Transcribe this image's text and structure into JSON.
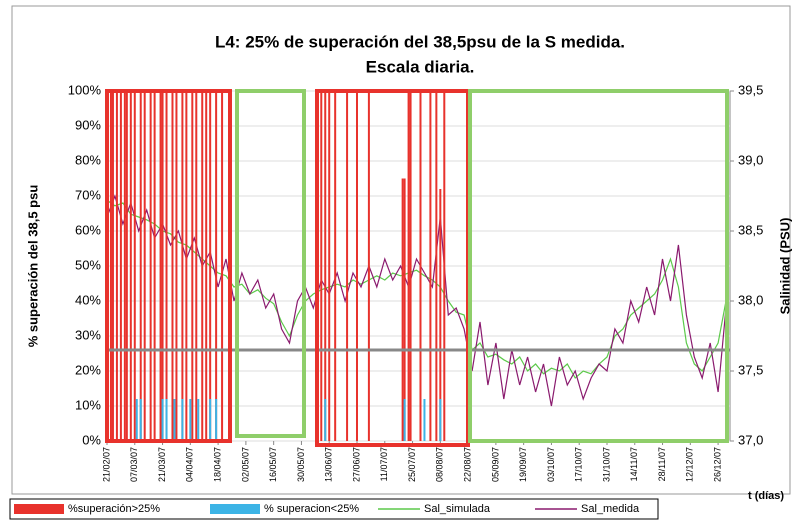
{
  "chart_data": {
    "type": "bar",
    "title": [
      "L4: 25% de superación del 38,5psu de la S medida.",
      "Escala diaria."
    ],
    "ylabel": "% superación del 38,5 psu",
    "y2label": "Salinidad (PSU)",
    "xlabel": "t (días)",
    "xlim": [
      0,
      314
    ],
    "xticks": [
      {
        "value": 0,
        "label": "21/02/07"
      },
      {
        "value": 14,
        "label": "07/03/07"
      },
      {
        "value": 28,
        "label": "21/03/07"
      },
      {
        "value": 42,
        "label": "04/04/07"
      },
      {
        "value": 56,
        "label": "18/04/07"
      },
      {
        "value": 70,
        "label": "02/05/07"
      },
      {
        "value": 84,
        "label": "16/05/07"
      },
      {
        "value": 98,
        "label": "30/05/07"
      },
      {
        "value": 112,
        "label": "13/06/07"
      },
      {
        "value": 126,
        "label": "27/06/07"
      },
      {
        "value": 140,
        "label": "11/07/07"
      },
      {
        "value": 154,
        "label": "25/07/07"
      },
      {
        "value": 168,
        "label": "08/08/07"
      },
      {
        "value": 182,
        "label": "22/08/07"
      },
      {
        "value": 196,
        "label": "05/09/07"
      },
      {
        "value": 210,
        "label": "19/09/07"
      },
      {
        "value": 224,
        "label": "03/10/07"
      },
      {
        "value": 238,
        "label": "17/10/07"
      },
      {
        "value": 252,
        "label": "31/10/07"
      },
      {
        "value": 266,
        "label": "14/11/07"
      },
      {
        "value": 280,
        "label": "28/11/07"
      },
      {
        "value": 294,
        "label": "12/12/07"
      },
      {
        "value": 308,
        "label": "26/12/07"
      }
    ],
    "ylim": [
      0,
      100
    ],
    "yticks": [
      {
        "value": 0,
        "label": "0%"
      },
      {
        "value": 10,
        "label": "10%"
      },
      {
        "value": 20,
        "label": "20%"
      },
      {
        "value": 30,
        "label": "30%"
      },
      {
        "value": 40,
        "label": "40%"
      },
      {
        "value": 50,
        "label": "50%"
      },
      {
        "value": 60,
        "label": "60%"
      },
      {
        "value": 70,
        "label": "70%"
      },
      {
        "value": 80,
        "label": "80%"
      },
      {
        "value": 90,
        "label": "90%"
      },
      {
        "value": 100,
        "label": "100%"
      }
    ],
    "y2lim": [
      37.0,
      39.5
    ],
    "y2ticks": [
      {
        "value": 37.0,
        "label": "37,0"
      },
      {
        "value": 37.5,
        "label": "37,5"
      },
      {
        "value": 38.0,
        "label": "38,0"
      },
      {
        "value": 38.5,
        "label": "38,5"
      },
      {
        "value": 39.0,
        "label": "39,0"
      },
      {
        "value": 39.5,
        "label": "39,5"
      }
    ],
    "grid": true,
    "threshold": 26,
    "series": [
      {
        "name": "%superación>25%",
        "color": "#e8322c",
        "type": "bar",
        "x": [
          2,
          3,
          5,
          7,
          9,
          10,
          12,
          14,
          17,
          19,
          22,
          24,
          27,
          28,
          30,
          33,
          35,
          38,
          40,
          43,
          45,
          48,
          50,
          52,
          55,
          58,
          108,
          110,
          112,
          115,
          121,
          126,
          132,
          149,
          150,
          152,
          153,
          158,
          163,
          166,
          168,
          170
        ],
        "values": [
          100,
          100,
          100,
          100,
          100,
          100,
          100,
          100,
          100,
          100,
          100,
          100,
          100,
          100,
          100,
          100,
          100,
          100,
          100,
          100,
          100,
          100,
          100,
          100,
          100,
          100,
          100,
          100,
          100,
          100,
          100,
          100,
          100,
          75,
          75,
          100,
          100,
          100,
          100,
          100,
          72,
          100
        ]
      },
      {
        "name": "% superacion<25%",
        "color": "#3cb4e6",
        "type": "bar",
        "x": [
          15,
          17,
          28,
          30,
          34,
          38,
          42,
          46,
          52,
          55,
          110,
          150,
          160,
          168
        ],
        "values": [
          12,
          12,
          12,
          12,
          12,
          12,
          12,
          12,
          12,
          12,
          12,
          12,
          12,
          12
        ]
      },
      {
        "name": "Sal_simulada",
        "color": "#5cc94a",
        "type": "line",
        "axis": "y2",
        "x": [
          0,
          4,
          8,
          12,
          16,
          20,
          24,
          28,
          32,
          36,
          40,
          44,
          48,
          52,
          56,
          60,
          64,
          68,
          72,
          76,
          80,
          84,
          88,
          92,
          96,
          100,
          104,
          108,
          112,
          116,
          120,
          124,
          128,
          132,
          136,
          140,
          144,
          148,
          152,
          156,
          160,
          164,
          168,
          172,
          176,
          180,
          184,
          188,
          192,
          196,
          200,
          204,
          208,
          212,
          216,
          220,
          224,
          228,
          232,
          236,
          240,
          244,
          248,
          252,
          256,
          260,
          264,
          268,
          272,
          276,
          280,
          284,
          288,
          292,
          296,
          300,
          304,
          308,
          312
        ],
        "values": [
          38.72,
          38.68,
          38.7,
          38.62,
          38.6,
          38.58,
          38.55,
          38.5,
          38.48,
          38.42,
          38.4,
          38.35,
          38.3,
          38.25,
          38.2,
          38.18,
          38.1,
          38.12,
          38.05,
          38.08,
          38.02,
          37.98,
          37.85,
          37.75,
          37.9,
          38.0,
          38.05,
          38.08,
          38.1,
          38.12,
          38.1,
          38.15,
          38.12,
          38.15,
          38.18,
          38.15,
          38.2,
          38.18,
          38.2,
          38.22,
          38.18,
          38.15,
          38.1,
          38.0,
          37.92,
          37.9,
          37.65,
          37.7,
          37.6,
          37.62,
          37.58,
          37.55,
          37.6,
          37.5,
          37.55,
          37.48,
          37.52,
          37.5,
          37.55,
          37.45,
          37.5,
          37.48,
          37.55,
          37.6,
          37.75,
          37.8,
          37.9,
          37.95,
          38.0,
          38.05,
          38.15,
          38.3,
          38.1,
          37.7,
          37.55,
          37.5,
          37.6,
          37.7,
          38.0
        ]
      },
      {
        "name": "Sal_medida",
        "color": "#8a1a6e",
        "type": "line",
        "axis": "y2",
        "x": [
          0,
          4,
          8,
          12,
          16,
          20,
          24,
          28,
          32,
          36,
          40,
          44,
          48,
          52,
          56,
          60,
          64,
          68,
          72,
          76,
          80,
          84,
          88,
          92,
          96,
          100,
          104,
          108,
          112,
          116,
          120,
          124,
          128,
          132,
          136,
          140,
          144,
          148,
          152,
          156,
          160,
          164,
          168,
          172,
          176,
          180,
          184,
          188,
          192,
          196,
          200,
          204,
          208,
          212,
          216,
          220,
          224,
          228,
          232,
          236,
          240,
          244,
          248,
          252,
          256,
          260,
          264,
          268,
          272,
          276,
          280,
          284,
          288,
          292,
          296,
          300,
          304,
          308,
          312
        ],
        "values": [
          38.6,
          38.75,
          38.55,
          38.7,
          38.5,
          38.65,
          38.45,
          38.55,
          38.4,
          38.5,
          38.3,
          38.45,
          38.25,
          38.35,
          38.1,
          38.3,
          38.0,
          38.2,
          38.05,
          38.15,
          37.95,
          38.05,
          37.8,
          37.7,
          38.0,
          38.1,
          37.95,
          38.15,
          38.05,
          38.2,
          38.0,
          38.2,
          38.1,
          38.25,
          38.1,
          38.3,
          38.15,
          38.25,
          38.1,
          38.3,
          38.2,
          38.1,
          38.6,
          37.9,
          37.95,
          37.8,
          37.5,
          37.85,
          37.4,
          37.7,
          37.3,
          37.65,
          37.4,
          37.6,
          37.35,
          37.55,
          37.25,
          37.6,
          37.4,
          37.5,
          37.3,
          37.45,
          37.55,
          37.5,
          37.8,
          37.7,
          38.0,
          37.85,
          38.1,
          37.9,
          38.3,
          38.0,
          38.4,
          37.9,
          37.6,
          37.45,
          37.7,
          37.35,
          37.95
        ]
      }
    ]
  }
}
